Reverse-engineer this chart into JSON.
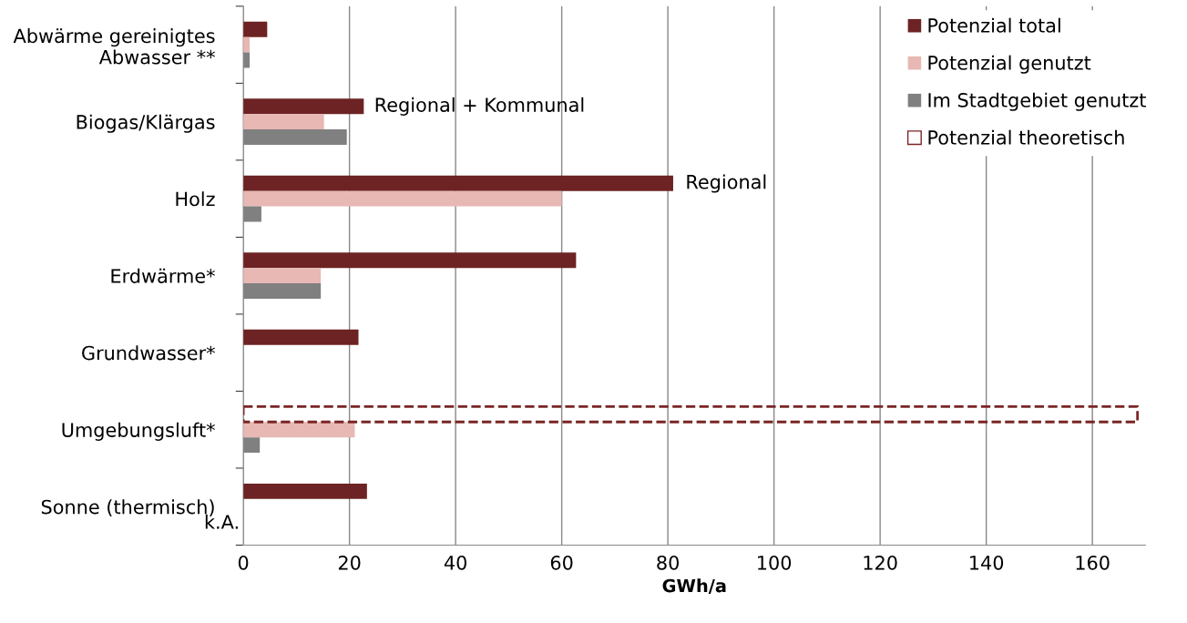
{
  "chart_data": {
    "type": "bar",
    "orientation": "horizontal",
    "xlabel": "GWh/a",
    "categories": [
      "Abwärme gereinigtes\nAbwasser **",
      "Biogas/Klärgas",
      "Holz",
      "Erdwärme*",
      "Grundwasser*",
      "Umgebungsluft*",
      "Sonne (thermisch)"
    ],
    "series": [
      {
        "name": "Potenzial total",
        "color": "#6d2323",
        "values": [
          4.5,
          22.7,
          81,
          62.7,
          21.7,
          null,
          23.3
        ]
      },
      {
        "name": "Potenzial genutzt",
        "color": "#e8b8b4",
        "values": [
          1.2,
          15.2,
          60,
          14.6,
          null,
          21,
          null
        ]
      },
      {
        "name": "Im Stadtgebiet genutzt",
        "color": "#808080",
        "values": [
          1.2,
          19.5,
          3.4,
          14.6,
          0,
          3.1,
          null
        ]
      },
      {
        "name": "Potenzial theoretisch",
        "color": "#7b2525",
        "line_style": "dashed",
        "values": [
          null,
          null,
          null,
          null,
          null,
          168.5,
          null
        ]
      }
    ],
    "xlim": [
      0,
      170
    ],
    "xticks": [
      0,
      20,
      40,
      60,
      80,
      100,
      120,
      140,
      160
    ],
    "grid": "x",
    "legend": "top right",
    "annotations": [
      "Regional + Kommunal",
      "Regional",
      "k.A."
    ]
  }
}
